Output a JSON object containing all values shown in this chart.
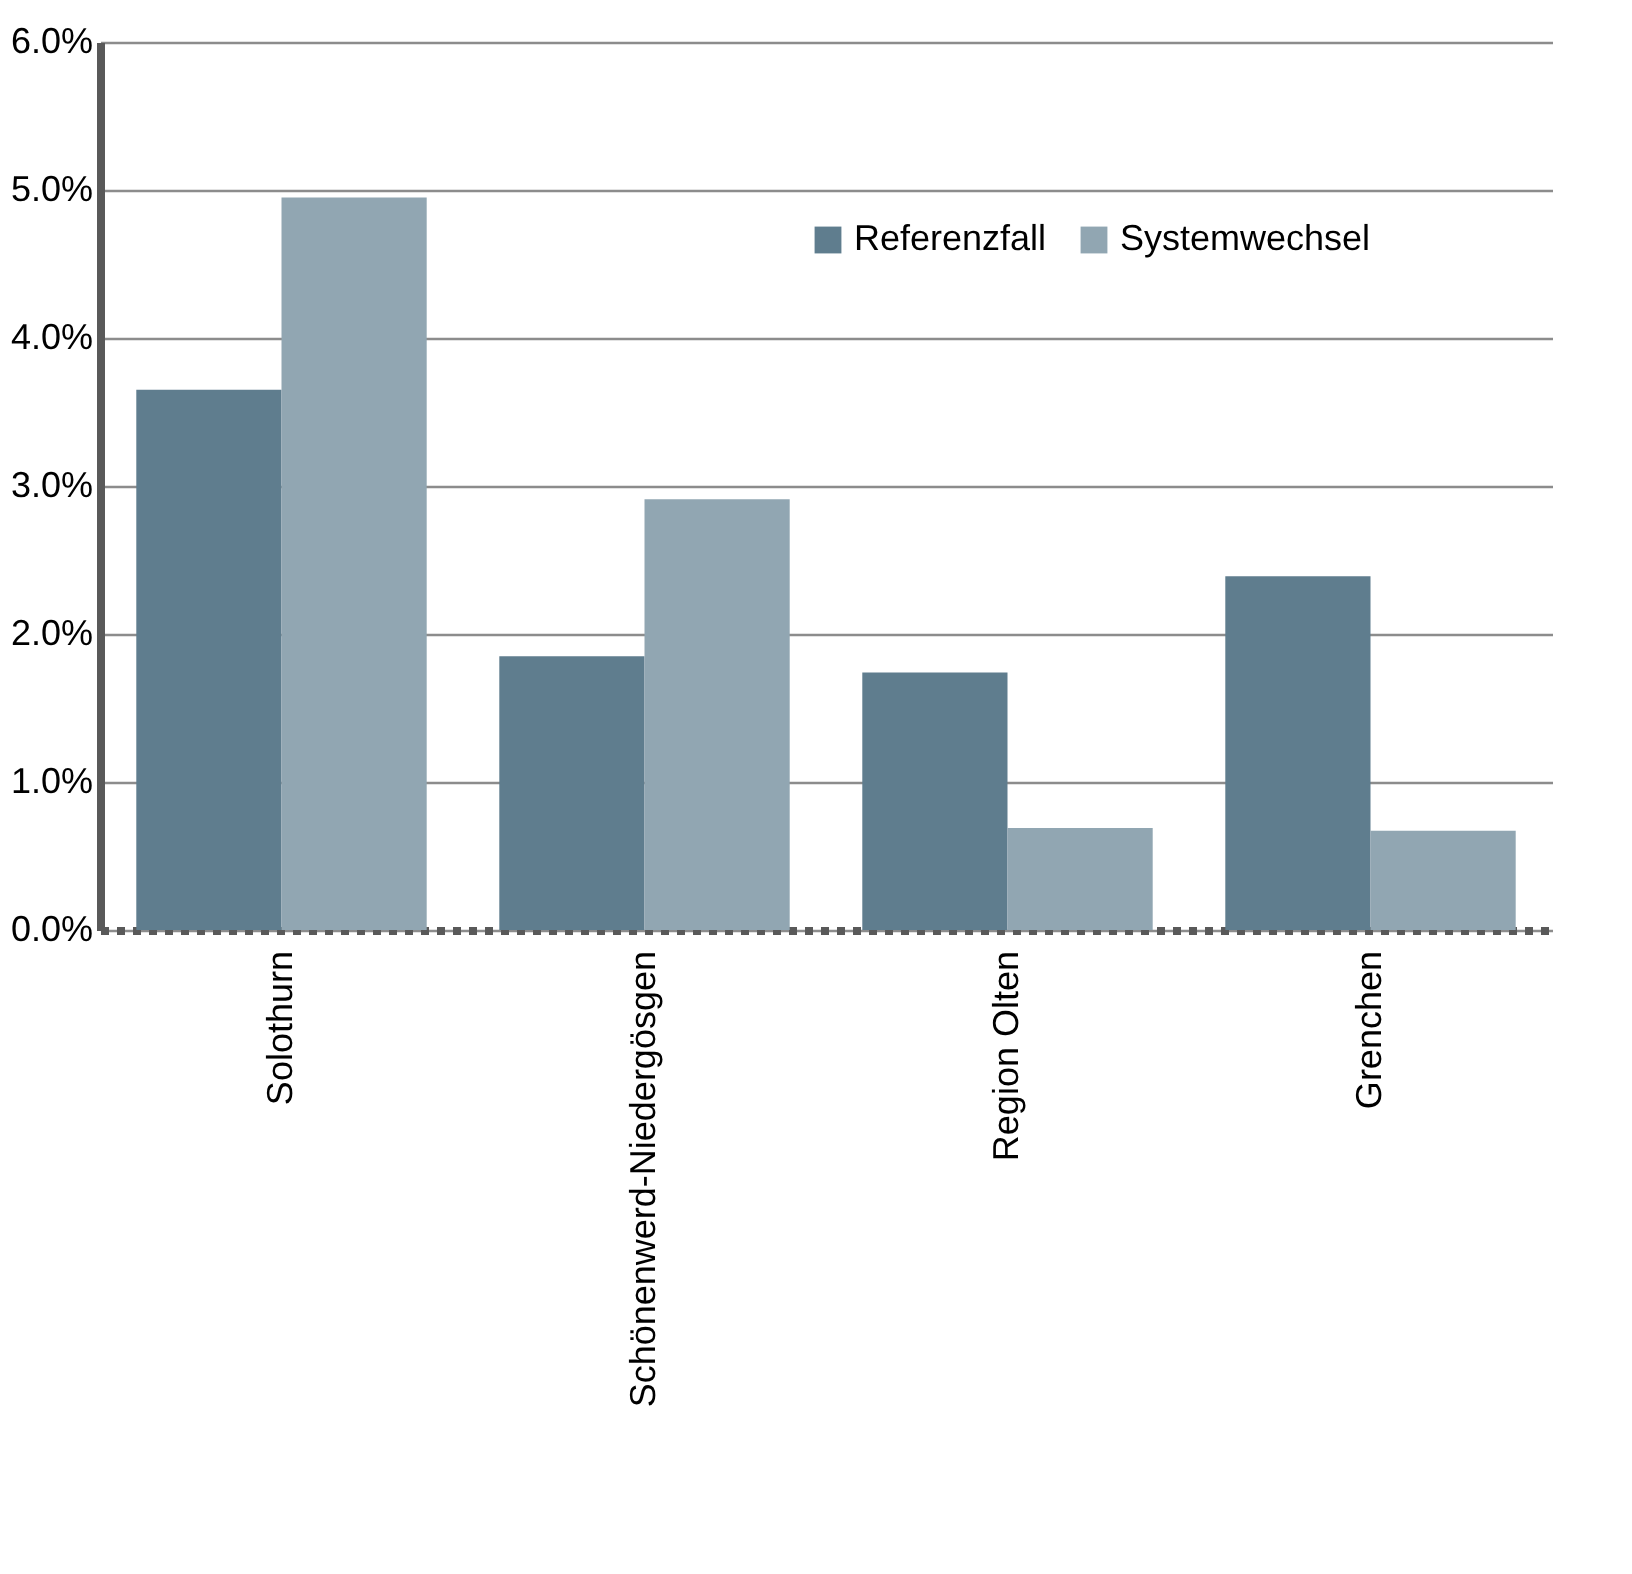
{
  "chart_data": {
    "type": "bar",
    "categories": [
      "Solothurn",
      "Schönenwerd-Niedergösgen",
      "Region Olten",
      "Grenchen"
    ],
    "series": [
      {
        "name": "Referenzfall",
        "color": "#5f7d8e",
        "values": [
          3.65,
          1.85,
          1.74,
          2.39
        ]
      },
      {
        "name": "Systemwechsel",
        "color": "#91a6b2",
        "values": [
          4.95,
          2.91,
          0.69,
          0.67
        ]
      }
    ],
    "ylim": [
      0,
      6
    ],
    "yticks": [
      {
        "value": 0,
        "label": "0.0%"
      },
      {
        "value": 1,
        "label": "1.0%"
      },
      {
        "value": 2,
        "label": "2.0%"
      },
      {
        "value": 3,
        "label": "3.0%"
      },
      {
        "value": 4,
        "label": "4.0%"
      },
      {
        "value": 5,
        "label": "5.0%"
      },
      {
        "value": 6,
        "label": "6.0%"
      }
    ],
    "grid": "y",
    "legend": "top right"
  }
}
